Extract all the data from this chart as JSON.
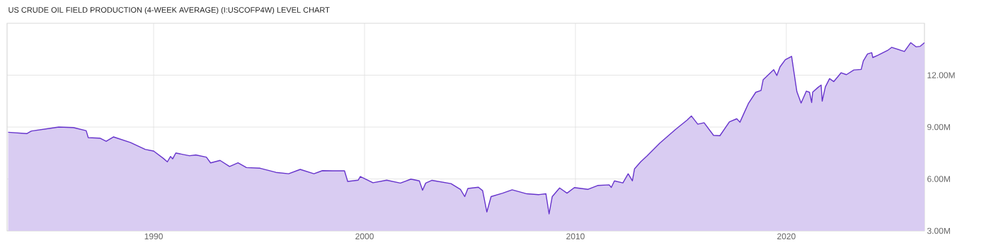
{
  "chart_data": {
    "type": "area",
    "title": "US CRUDE OIL FIELD PRODUCTION (4-WEEK AVERAGE) (I:USCOFP4W) LEVEL CHART",
    "x": [
      1983.1,
      1983.98,
      1984.2,
      1985.1,
      1985.5,
      1986.2,
      1986.8,
      1986.9,
      1987.45,
      1987.75,
      1988.1,
      1988.9,
      1989.6,
      1990.0,
      1990.45,
      1990.65,
      1990.8,
      1990.9,
      1991.05,
      1991.7,
      1992.0,
      1992.5,
      1992.7,
      1993.15,
      1993.6,
      1994.0,
      1994.4,
      1995.05,
      1995.8,
      1996.4,
      1996.95,
      1997.6,
      1998.0,
      1998.5,
      1999.05,
      1999.2,
      1999.7,
      1999.8,
      2000.4,
      2001.05,
      2001.7,
      2002.2,
      2002.6,
      2002.75,
      2002.9,
      2003.2,
      2004.1,
      2004.55,
      2004.75,
      2004.9,
      2005.4,
      2005.6,
      2005.8,
      2006.0,
      2006.55,
      2007.0,
      2007.7,
      2008.25,
      2008.6,
      2008.75,
      2008.9,
      2009.25,
      2009.6,
      2009.95,
      2010.6,
      2011.05,
      2011.6,
      2011.7,
      2011.85,
      2012.25,
      2012.5,
      2012.7,
      2012.8,
      2013.1,
      2013.4,
      2014.0,
      2014.75,
      2015.3,
      2015.5,
      2015.8,
      2016.1,
      2016.55,
      2016.85,
      2017.3,
      2017.65,
      2017.8,
      2018.0,
      2018.2,
      2018.55,
      2018.8,
      2018.9,
      2019.4,
      2019.55,
      2019.7,
      2019.95,
      2020.25,
      2020.5,
      2020.7,
      2020.95,
      2021.1,
      2021.2,
      2021.25,
      2021.5,
      2021.65,
      2021.7,
      2021.85,
      2022.05,
      2022.25,
      2022.6,
      2022.85,
      2023.2,
      2023.55,
      2023.65,
      2023.85,
      2024.05,
      2024.1,
      2024.35,
      2024.8,
      2025.0,
      2025.6,
      2025.9,
      2026.15,
      2026.35,
      2026.55
    ],
    "series": [
      {
        "color": "#6633cc",
        "values": [
          8.7,
          8.62,
          8.77,
          8.93,
          9.0,
          8.97,
          8.79,
          8.39,
          8.36,
          8.18,
          8.43,
          8.11,
          7.71,
          7.61,
          7.2,
          6.99,
          7.3,
          7.16,
          7.5,
          7.34,
          7.39,
          7.26,
          6.93,
          7.07,
          6.72,
          6.93,
          6.66,
          6.62,
          6.38,
          6.3,
          6.55,
          6.3,
          6.48,
          6.47,
          6.47,
          5.86,
          5.93,
          6.14,
          5.78,
          5.93,
          5.76,
          5.99,
          5.89,
          5.35,
          5.76,
          5.92,
          5.73,
          5.39,
          4.98,
          5.45,
          5.52,
          5.32,
          4.09,
          4.98,
          5.18,
          5.37,
          5.14,
          5.09,
          5.14,
          3.98,
          4.98,
          5.48,
          5.18,
          5.5,
          5.4,
          5.62,
          5.66,
          5.51,
          5.89,
          5.77,
          6.3,
          5.89,
          6.58,
          7.0,
          7.34,
          8.07,
          8.87,
          9.41,
          9.64,
          9.17,
          9.25,
          8.52,
          8.5,
          9.3,
          9.48,
          9.28,
          9.82,
          10.36,
          11.01,
          11.12,
          11.73,
          12.32,
          11.98,
          12.48,
          12.89,
          13.09,
          11.05,
          10.39,
          11.08,
          11.01,
          10.42,
          11.02,
          11.29,
          11.43,
          10.5,
          11.32,
          11.8,
          11.63,
          12.14,
          12.03,
          12.3,
          12.33,
          12.82,
          13.23,
          13.3,
          13.02,
          13.16,
          13.43,
          13.61,
          13.37,
          13.88,
          13.64,
          13.67,
          13.88
        ]
      }
    ],
    "xlim": [
      1983.05,
      2026.55
    ],
    "xticks": [
      1990,
      2000,
      2010,
      2020
    ],
    "ylim": [
      3,
      15
    ],
    "yticks": [
      {
        "value": 3,
        "label": "3.00M"
      },
      {
        "value": 6,
        "label": "6.00M"
      },
      {
        "value": 9,
        "label": "9.00M"
      },
      {
        "value": 12,
        "label": "12.00M"
      }
    ],
    "grid": true,
    "marker": "none",
    "line_style": "solid"
  }
}
